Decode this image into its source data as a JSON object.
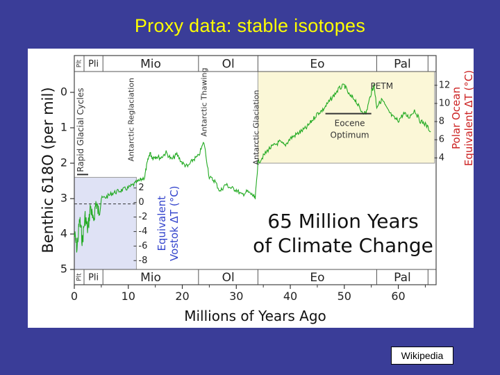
{
  "slide": {
    "title": "Proxy data: stable isotopes",
    "source_label": "Wikipedia"
  },
  "chart_data": {
    "type": "line",
    "title": "65 Million Years of Climate Change",
    "xlabel": "Millions of Years Ago",
    "ylabel_left": "Benthic δ18O (per mil)",
    "ylabel_vostok": "Equivalent Vostok ΔT (°C)",
    "ylabel_right": "Polar Ocean Equivalent ΔT (°C)",
    "xlim": [
      0,
      67
    ],
    "ylim": [
      5,
      0
    ],
    "x_ticks": [
      0,
      10,
      20,
      30,
      40,
      50,
      60
    ],
    "y_ticks": [
      0,
      1,
      2,
      3,
      4,
      5
    ],
    "vostok_ticks": [
      "2",
      "0",
      "-2",
      "-4",
      "-6",
      "-8"
    ],
    "polar_ticks": [
      "12",
      "10",
      "8",
      "6",
      "4"
    ],
    "epochs": [
      {
        "label": "Plt",
        "start": 0,
        "end": 1.8
      },
      {
        "label": "Pli",
        "start": 1.8,
        "end": 5.3
      },
      {
        "label": "Mio",
        "start": 5.3,
        "end": 23
      },
      {
        "label": "Ol",
        "start": 23,
        "end": 34
      },
      {
        "label": "Eo",
        "start": 34,
        "end": 56
      },
      {
        "label": "Pal",
        "start": 56,
        "end": 65.5
      }
    ],
    "annotations": [
      {
        "label": "Rapid Glacial Cycles",
        "x": 1
      },
      {
        "label": "Antarctic Reglaciation",
        "x": 11
      },
      {
        "label": "Antarctic Thawing",
        "x": 24.5
      },
      {
        "label": "Antarctic Glaciation",
        "x": 33.5
      },
      {
        "label": "PETM",
        "x": 55.5
      },
      {
        "label": "Eocene Optimum",
        "x": 51
      }
    ],
    "series": [
      {
        "color": "#22aa22",
        "x": [
          0,
          0.5,
          1,
          1.5,
          2,
          2.5,
          3,
          3.5,
          4,
          4.5,
          5,
          6,
          7,
          8,
          9,
          10,
          11,
          12,
          13,
          13.5,
          14,
          14.5,
          15,
          16,
          17,
          18,
          19,
          20,
          21,
          22,
          23,
          24,
          25,
          26,
          27,
          28,
          29,
          30,
          31,
          32,
          33,
          33.5,
          34,
          35,
          36,
          37,
          38,
          39,
          40,
          41,
          42,
          43,
          44,
          45,
          46,
          47,
          48,
          49,
          50,
          51,
          52,
          53,
          54,
          55,
          55.5,
          56,
          57,
          58,
          59,
          60,
          61,
          62,
          63,
          64,
          65,
          66
        ],
        "values": [
          4.0,
          4.4,
          3.6,
          4.2,
          3.5,
          3.9,
          3.2,
          3.7,
          3.1,
          3.4,
          3.0,
          2.95,
          2.85,
          2.8,
          2.75,
          2.7,
          2.6,
          2.5,
          2.4,
          2.0,
          1.7,
          1.85,
          1.8,
          1.85,
          1.7,
          1.9,
          1.75,
          2.0,
          2.1,
          1.9,
          1.8,
          1.4,
          2.4,
          2.5,
          2.8,
          2.6,
          2.7,
          2.75,
          2.9,
          2.8,
          2.9,
          3.0,
          2.0,
          1.8,
          1.6,
          1.5,
          1.4,
          1.5,
          1.3,
          1.2,
          1.1,
          1.0,
          0.8,
          0.6,
          0.5,
          0.3,
          0.1,
          -0.1,
          -0.2,
          0.1,
          0.2,
          0.5,
          0.6,
          0.0,
          -0.2,
          0.4,
          0.2,
          0.5,
          0.7,
          0.8,
          0.6,
          0.7,
          0.5,
          0.8,
          0.9,
          1.1
        ]
      }
    ]
  }
}
